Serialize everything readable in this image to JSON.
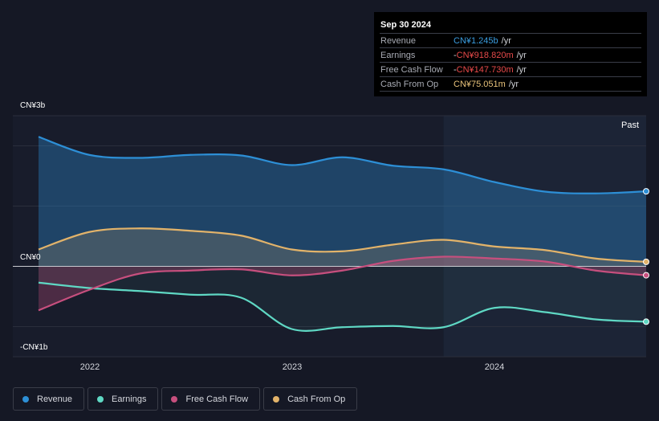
{
  "tooltip": {
    "date": "Sep 30 2024",
    "rows": [
      {
        "label": "Revenue",
        "value": "CN¥1.245b",
        "unit": "/yr",
        "color": "#3a9de0"
      },
      {
        "label": "Earnings",
        "value": "-CN¥918.820m",
        "unit": "/yr",
        "color": "#e84a4a"
      },
      {
        "label": "Free Cash Flow",
        "value": "-CN¥147.730m",
        "unit": "/yr",
        "color": "#e84a4a"
      },
      {
        "label": "Cash From Op",
        "value": "CN¥75.051m",
        "unit": "/yr",
        "color": "#e8c27a"
      }
    ]
  },
  "past_label": "Past",
  "chart_data": {
    "type": "line",
    "y_unit": "CN¥ billions",
    "ylim": [
      -1.5,
      2.5
    ],
    "xlim": [
      2021.75,
      2024.75
    ],
    "y_tick_labels": [
      "CN¥3b",
      "CN¥0",
      "-CN¥1b"
    ],
    "x_tick_labels": [
      {
        "label": "2022",
        "x": 2022.0
      },
      {
        "label": "2023",
        "x": 2023.0
      },
      {
        "label": "2024",
        "x": 2024.0
      }
    ],
    "past_region_start": 2023.75,
    "x": [
      "2021-09",
      "2021-12",
      "2022-03",
      "2022-06",
      "2022-09",
      "2022-12",
      "2023-03",
      "2023-06",
      "2023-09",
      "2023-12",
      "2024-03",
      "2024-06",
      "2024-09"
    ],
    "series": [
      {
        "name": "Revenue",
        "color": "#2d8fd6",
        "values": [
          2.15,
          1.85,
          1.8,
          1.85,
          1.84,
          1.68,
          1.81,
          1.67,
          1.61,
          1.4,
          1.24,
          1.21,
          1.245
        ]
      },
      {
        "name": "Earnings",
        "color": "#5fd8c4",
        "values": [
          -0.27,
          -0.36,
          -0.41,
          -0.47,
          -0.52,
          -1.04,
          -1.01,
          -0.99,
          -1.01,
          -0.69,
          -0.76,
          -0.88,
          -0.919
        ]
      },
      {
        "name": "Free Cash Flow",
        "color": "#c74f7e",
        "values": [
          -0.73,
          -0.39,
          -0.12,
          -0.07,
          -0.05,
          -0.15,
          -0.07,
          0.09,
          0.16,
          0.13,
          0.08,
          -0.07,
          -0.148
        ]
      },
      {
        "name": "Cash From Op",
        "color": "#e2b36a",
        "values": [
          0.28,
          0.57,
          0.63,
          0.59,
          0.51,
          0.28,
          0.25,
          0.36,
          0.44,
          0.33,
          0.27,
          0.13,
          0.075
        ]
      }
    ]
  }
}
